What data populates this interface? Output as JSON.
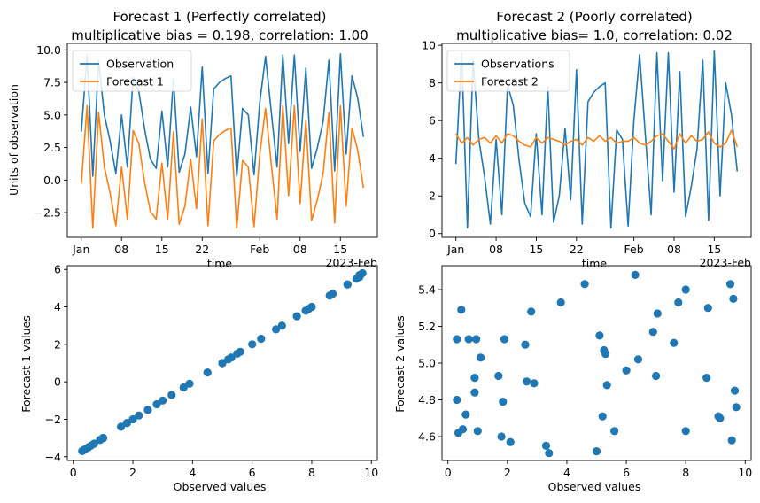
{
  "colors": {
    "blue": "#1f77b4",
    "orange": "#ff7f0e"
  },
  "chart_data": [
    {
      "type": "line",
      "title": [
        "Forecast 1 (Perfectly correlated)",
        "multiplicative bias = 0.198, correlation:  1.00"
      ],
      "xlabel": "time",
      "ylabel": "Units of observation",
      "x_offset_label": "2023-Feb",
      "x": [
        "2023-01-01",
        "2023-01-02",
        "2023-01-03",
        "2023-01-04",
        "2023-01-05",
        "2023-01-06",
        "2023-01-07",
        "2023-01-08",
        "2023-01-09",
        "2023-01-10",
        "2023-01-11",
        "2023-01-12",
        "2023-01-13",
        "2023-01-14",
        "2023-01-15",
        "2023-01-16",
        "2023-01-17",
        "2023-01-18",
        "2023-01-19",
        "2023-01-20",
        "2023-01-21",
        "2023-01-22",
        "2023-01-23",
        "2023-01-24",
        "2023-01-25",
        "2023-01-26",
        "2023-01-27",
        "2023-01-28",
        "2023-01-29",
        "2023-01-30",
        "2023-01-31",
        "2023-02-01",
        "2023-02-02",
        "2023-02-03",
        "2023-02-04",
        "2023-02-05",
        "2023-02-06",
        "2023-02-07",
        "2023-02-08",
        "2023-02-09",
        "2023-02-10",
        "2023-02-11",
        "2023-02-12",
        "2023-02-13",
        "2023-02-14",
        "2023-02-15",
        "2023-02-16",
        "2023-02-17",
        "2023-02-18",
        "2023-02-19"
      ],
      "xticks": [
        "Jan",
        "08",
        "15",
        "22",
        "Feb",
        "08",
        "15"
      ],
      "xtick_dates": [
        "2023-01-01",
        "2023-01-08",
        "2023-01-15",
        "2023-01-22",
        "2023-02-01",
        "2023-02-08",
        "2023-02-15"
      ],
      "yticks": [
        -2.5,
        0.0,
        2.5,
        5.0,
        7.5,
        10.0
      ],
      "ylim": [
        -4.4,
        10.5
      ],
      "series": [
        {
          "name": "Observation",
          "color": "#1f77b4",
          "values": [
            3.7,
            9.6,
            0.3,
            9.2,
            5.0,
            3.0,
            0.5,
            5.0,
            1.0,
            7.9,
            6.8,
            3.9,
            1.6,
            0.9,
            5.3,
            1.0,
            7.8,
            0.6,
            2.0,
            5.6,
            1.8,
            8.7,
            0.5,
            7.0,
            7.5,
            7.8,
            8.0,
            0.3,
            5.5,
            5.0,
            0.4,
            6.0,
            9.5,
            5.2,
            1.0,
            9.6,
            2.8,
            9.6,
            2.2,
            8.6,
            0.9,
            2.5,
            4.5,
            9.2,
            0.7,
            9.7,
            2.0,
            8.0,
            6.3,
            3.3
          ]
        },
        {
          "name": "Forecast 1",
          "color": "#ff7f0e",
          "values": [
            -0.3,
            5.7,
            -3.7,
            5.2,
            1.0,
            -1.0,
            -3.5,
            1.0,
            -3.0,
            3.8,
            2.8,
            -0.2,
            -2.4,
            -3.0,
            1.3,
            -3.0,
            3.7,
            -3.4,
            -2.0,
            1.6,
            -2.2,
            4.7,
            -3.5,
            3.0,
            3.5,
            3.8,
            4.0,
            -3.7,
            1.5,
            1.0,
            -3.6,
            2.0,
            5.5,
            1.2,
            -3.0,
            5.7,
            -1.2,
            5.7,
            -1.8,
            4.6,
            -3.1,
            -1.5,
            0.5,
            5.2,
            -3.3,
            5.7,
            -2.0,
            4.0,
            2.3,
            -0.6
          ]
        }
      ],
      "legend": "top-left"
    },
    {
      "type": "line",
      "title": [
        "Forecast 2 (Poorly correlated)",
        "multiplicative bias= 1.0, correlation:  0.02"
      ],
      "xlabel": "time",
      "ylabel": "",
      "x_offset_label": "2023-Feb",
      "xticks": [
        "Jan",
        "08",
        "15",
        "22",
        "Feb",
        "08",
        "15"
      ],
      "yticks": [
        0,
        2,
        4,
        6,
        8,
        10
      ],
      "ylim": [
        -0.2,
        10.1
      ],
      "series": [
        {
          "name": "Observations",
          "color": "#1f77b4",
          "values": [
            3.7,
            9.6,
            0.3,
            9.2,
            5.0,
            3.0,
            0.5,
            5.0,
            1.0,
            7.9,
            6.8,
            3.9,
            1.6,
            0.9,
            5.3,
            1.0,
            7.8,
            0.6,
            2.0,
            5.6,
            1.8,
            8.7,
            0.5,
            7.0,
            7.5,
            7.8,
            8.0,
            0.3,
            5.5,
            5.0,
            0.4,
            6.0,
            9.5,
            5.2,
            1.0,
            9.6,
            2.8,
            9.6,
            2.2,
            8.6,
            0.9,
            2.5,
            4.5,
            9.2,
            0.7,
            9.7,
            2.0,
            8.0,
            6.3,
            3.3
          ]
        },
        {
          "name": "Forecast 2",
          "color": "#ff7f0e",
          "values": [
            5.3,
            4.8,
            5.1,
            4.7,
            5.0,
            5.1,
            4.8,
            5.2,
            4.8,
            5.3,
            5.2,
            4.9,
            4.7,
            4.6,
            5.1,
            4.8,
            5.1,
            5.0,
            4.9,
            4.7,
            4.9,
            5.0,
            4.7,
            5.1,
            4.9,
            5.2,
            4.9,
            5.1,
            4.8,
            4.9,
            4.9,
            5.1,
            4.8,
            4.7,
            4.9,
            5.2,
            5.3,
            4.9,
            4.5,
            5.3,
            4.8,
            5.2,
            4.9,
            5.0,
            5.4,
            4.8,
            4.6,
            4.8,
            5.5,
            4.6
          ]
        }
      ],
      "legend": "top-left"
    },
    {
      "type": "scatter",
      "xlabel": "Observed values",
      "ylabel": "Forecast 1 values",
      "xticks": [
        0,
        2,
        4,
        6,
        8,
        10
      ],
      "yticks": [
        -4,
        -2,
        0,
        2,
        4,
        6
      ],
      "xlim": [
        -0.2,
        10.2
      ],
      "ylim": [
        -4.2,
        6.2
      ],
      "series": [
        {
          "color": "#1f77b4",
          "x": [
            0.3,
            0.35,
            0.4,
            0.5,
            0.5,
            0.6,
            0.7,
            0.9,
            0.9,
            1.0,
            1.0,
            1.0,
            1.6,
            1.8,
            1.8,
            2.0,
            2.2,
            2.5,
            2.8,
            3.0,
            3.3,
            3.7,
            3.9,
            4.5,
            5.0,
            5.0,
            5.2,
            5.3,
            5.5,
            5.6,
            6.0,
            6.3,
            6.8,
            7.0,
            7.5,
            7.8,
            7.8,
            7.9,
            8.0,
            8.6,
            8.7,
            9.2,
            9.2,
            9.5,
            9.6,
            9.6,
            9.6,
            9.7
          ],
          "y": [
            -3.7,
            -3.65,
            -3.6,
            -3.5,
            -3.5,
            -3.4,
            -3.3,
            -3.1,
            -3.1,
            -3.0,
            -3.0,
            -3.0,
            -2.4,
            -2.2,
            -2.2,
            -2.0,
            -1.8,
            -1.5,
            -1.2,
            -1.0,
            -0.7,
            -0.3,
            -0.1,
            0.5,
            1.0,
            1.0,
            1.2,
            1.3,
            1.5,
            1.6,
            2.0,
            2.3,
            2.8,
            3.0,
            3.5,
            3.8,
            3.8,
            3.9,
            4.0,
            4.6,
            4.7,
            5.2,
            5.2,
            5.5,
            5.6,
            5.7,
            5.7,
            5.8
          ]
        }
      ]
    },
    {
      "type": "scatter",
      "xlabel": "Observed values",
      "ylabel": "Forecast 2 values",
      "xticks": [
        0,
        2,
        4,
        6,
        8,
        10
      ],
      "yticks": [
        4.6,
        4.8,
        5.0,
        5.2,
        5.4
      ],
      "xlim": [
        -0.2,
        10.2
      ],
      "ylim": [
        4.47,
        5.53
      ],
      "series": [
        {
          "color": "#1f77b4",
          "x": [
            0.3,
            0.3,
            0.35,
            0.45,
            0.5,
            0.6,
            0.7,
            0.9,
            0.9,
            0.95,
            1.0,
            1.1,
            1.7,
            1.8,
            1.85,
            1.9,
            2.1,
            2.6,
            2.65,
            2.8,
            2.9,
            3.3,
            3.4,
            3.8,
            4.6,
            5.0,
            5.1,
            5.2,
            5.25,
            5.3,
            5.35,
            5.6,
            6.0,
            6.3,
            6.4,
            6.9,
            7.0,
            7.05,
            7.6,
            7.75,
            8.0,
            8.0,
            8.7,
            8.75,
            9.1,
            9.15,
            9.5,
            9.55,
            9.6,
            9.65,
            9.7
          ],
          "y": [
            5.13,
            4.8,
            4.62,
            5.29,
            4.64,
            4.72,
            5.13,
            4.92,
            4.84,
            5.13,
            4.63,
            5.03,
            4.93,
            4.6,
            4.79,
            5.13,
            4.57,
            5.1,
            4.9,
            5.28,
            4.89,
            4.55,
            4.51,
            5.33,
            5.43,
            4.52,
            5.15,
            4.71,
            5.07,
            5.05,
            4.88,
            4.63,
            4.96,
            5.48,
            5.02,
            5.17,
            4.93,
            5.27,
            5.11,
            5.33,
            5.4,
            4.63,
            4.92,
            5.3,
            4.71,
            4.7,
            5.43,
            4.58,
            5.35,
            4.85,
            4.76
          ]
        }
      ]
    }
  ]
}
